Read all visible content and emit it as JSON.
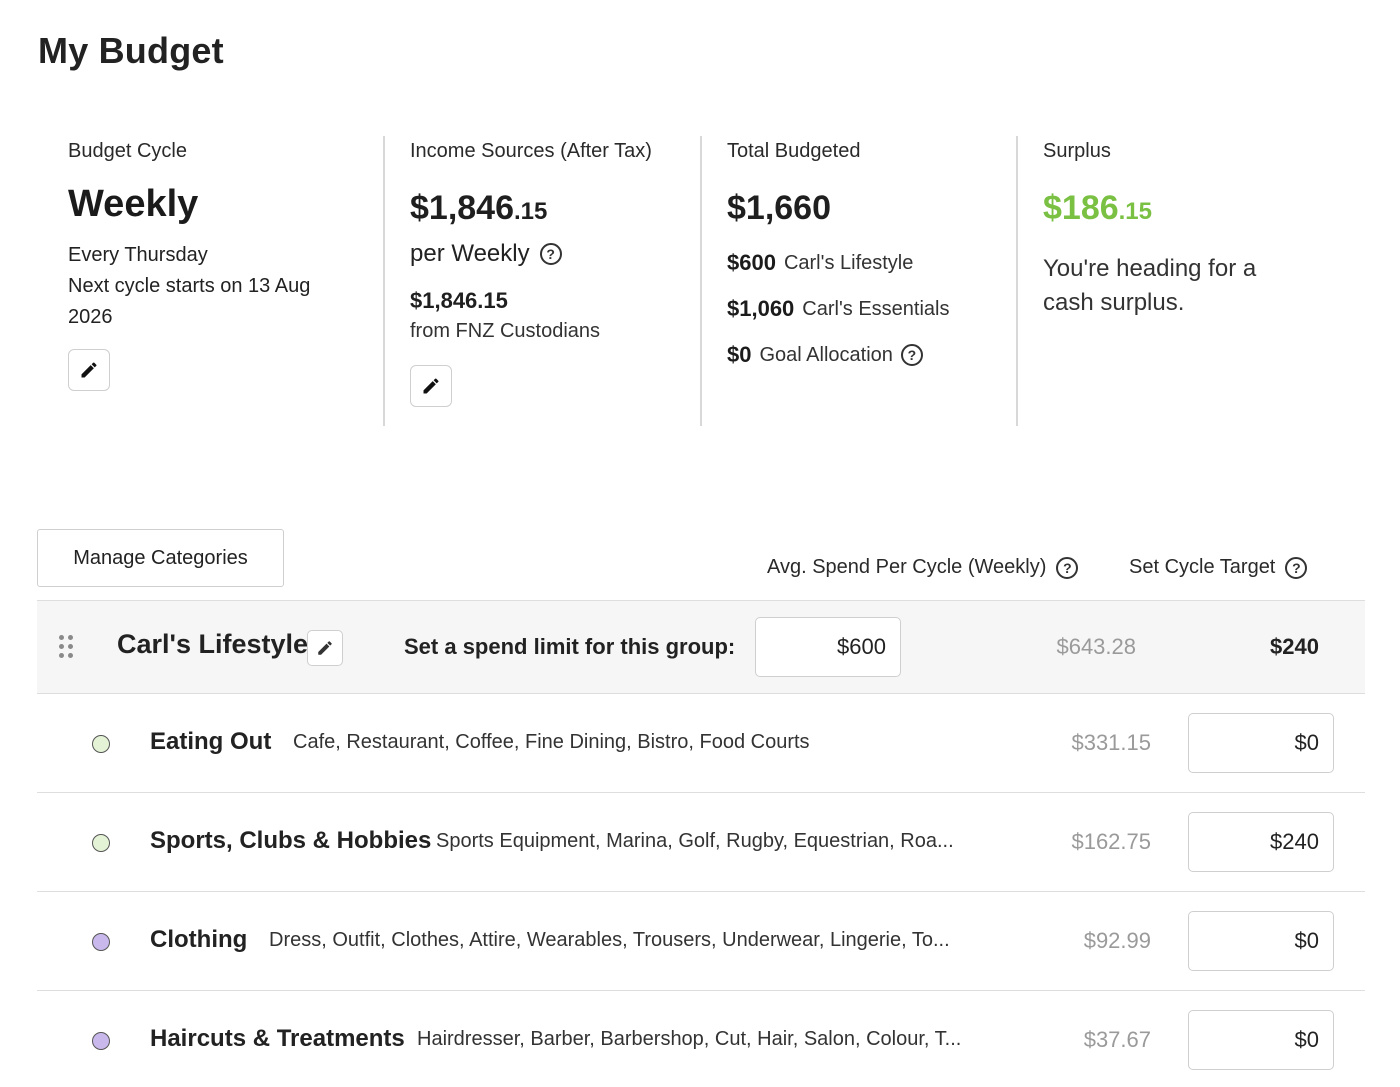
{
  "page_title": "My Budget",
  "summary": {
    "cycle": {
      "label": "Budget Cycle",
      "value": "Weekly",
      "line1": "Every Thursday",
      "line2": "Next cycle starts on 13 Aug 2026"
    },
    "income": {
      "label": "Income Sources (After Tax)",
      "amount_whole": "$1,846",
      "amount_cents": ".15",
      "per": "per Weekly",
      "source_amount": "$1,846.15",
      "source_from": "from FNZ Custodians"
    },
    "total_budgeted": {
      "label": "Total Budgeted",
      "amount": "$1,660",
      "items": [
        {
          "amount": "$600",
          "label": "Carl's Lifestyle"
        },
        {
          "amount": "$1,060",
          "label": "Carl's Essentials"
        },
        {
          "amount": "$0",
          "label": "Goal Allocation"
        }
      ]
    },
    "surplus": {
      "label": "Surplus",
      "amount_whole": "$186",
      "amount_cents": ".15",
      "message": "You're heading for a cash surplus.",
      "color": "#7ac043"
    }
  },
  "table": {
    "manage_label": "Manage Categories",
    "avg_header": "Avg. Spend Per Cycle (Weekly)",
    "target_header": "Set Cycle Target",
    "group": {
      "name": "Carl's Lifestyle",
      "limit_label": "Set a spend limit for this group:",
      "limit_value": "$600",
      "avg": "$643.28",
      "target": "$240"
    },
    "categories": [
      {
        "name": "Eating Out",
        "desc": "Cafe, Restaurant, Coffee, Fine Dining, Bistro, Food Courts",
        "avg": "$331.15",
        "target": "$0",
        "dot_color": "#e4f3d6"
      },
      {
        "name": "Sports, Clubs & Hobbies",
        "desc": "Sports Equipment, Marina, Golf, Rugby, Equestrian, Roa...",
        "avg": "$162.75",
        "target": "$240",
        "dot_color": "#e4f3d6"
      },
      {
        "name": "Clothing",
        "desc": "Dress, Outfit, Clothes, Attire, Wearables, Trousers, Underwear, Lingerie, To...",
        "avg": "$92.99",
        "target": "$0",
        "dot_color": "#c9b8ec"
      },
      {
        "name": "Haircuts & Treatments",
        "desc": "Hairdresser, Barber, Barbershop, Cut, Hair, Salon, Colour, T...",
        "avg": "$37.67",
        "target": "$0",
        "dot_color": "#c9b8ec"
      }
    ]
  }
}
